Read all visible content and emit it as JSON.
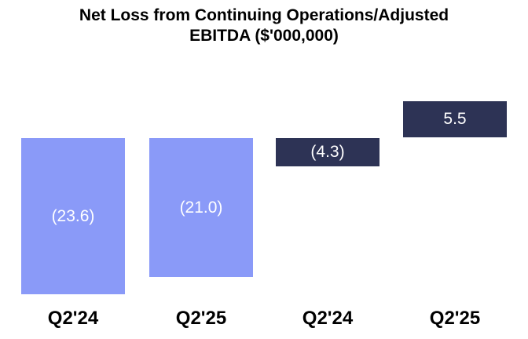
{
  "title": {
    "lines": [
      "Net Loss from Continuing Operations/Adjusted",
      "EBITDA ($'000,000)"
    ]
  },
  "colors": {
    "net_loss_bar": "#8A9AF8",
    "adjusted_ebitda_bar": "#2D3355",
    "value_label_text": "#FFFFFF",
    "title_text": "#000000",
    "axis_label_text": "#000000",
    "background": "#FFFFFF"
  },
  "chart_data": {
    "type": "bar",
    "title": "Net Loss from Continuing Operations/Adjusted EBITDA ($'000,000)",
    "categories": [
      "Q2'24",
      "Q2'25",
      "Q2'24",
      "Q2'25"
    ],
    "bars": [
      {
        "series": "Net Loss from Continuing Operations",
        "category": "Q2'24",
        "value": -23.6,
        "label": "(23.6)",
        "color": "#8A9AF8"
      },
      {
        "series": "Net Loss from Continuing Operations",
        "category": "Q2'25",
        "value": -21.0,
        "label": "(21.0)",
        "color": "#8A9AF8"
      },
      {
        "series": "Adjusted EBITDA",
        "category": "Q2'24",
        "value": -4.3,
        "label": "(4.3)",
        "color": "#2D3355"
      },
      {
        "series": "Adjusted EBITDA",
        "category": "Q2'25",
        "value": 5.5,
        "label": "5.5",
        "color": "#2D3355"
      }
    ],
    "series": [
      {
        "name": "Net Loss from Continuing Operations",
        "color": "#8A9AF8",
        "values": [
          -23.6,
          -21.0
        ]
      },
      {
        "name": "Adjusted EBITDA",
        "color": "#2D3355",
        "values": [
          -4.3,
          5.5
        ]
      }
    ],
    "layout_hints": {
      "baseline_value": 0,
      "ylim": [
        -25,
        7
      ],
      "grid": false,
      "y_axis_visible": false,
      "legend": "none",
      "value_format": "negatives shown in parentheses, labels inside bars"
    }
  }
}
